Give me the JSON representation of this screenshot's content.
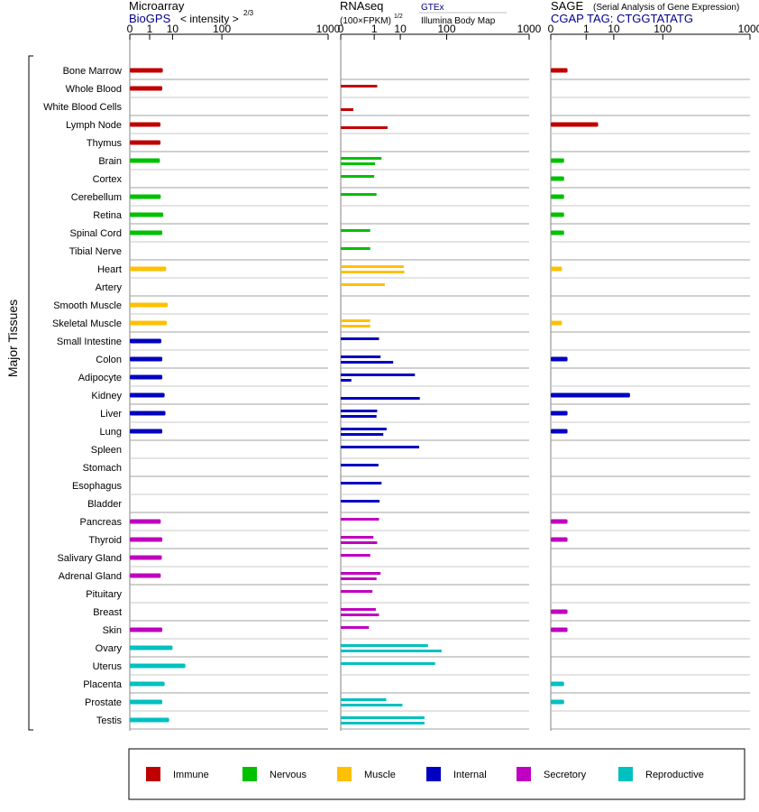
{
  "chart_data": {
    "type": "bar",
    "ylabel": "Major Tissues",
    "categories": [
      "Bone Marrow",
      "Whole Blood",
      "White Blood Cells",
      "Lymph Node",
      "Thymus",
      "Brain",
      "Cortex",
      "Cerebellum",
      "Retina",
      "Spinal Cord",
      "Tibial Nerve",
      "Heart",
      "Artery",
      "Smooth Muscle",
      "Skeletal Muscle",
      "Small Intestine",
      "Colon",
      "Adipocyte",
      "Kidney",
      "Liver",
      "Lung",
      "Spleen",
      "Stomach",
      "Esophagus",
      "Bladder",
      "Pancreas",
      "Thyroid",
      "Salivary Gland",
      "Adrenal Gland",
      "Pituitary",
      "Breast",
      "Skin",
      "Ovary",
      "Uterus",
      "Placenta",
      "Prostate",
      "Testis"
    ],
    "groups": [
      "immune",
      "immune",
      "immune",
      "immune",
      "immune",
      "nervous",
      "nervous",
      "nervous",
      "nervous",
      "nervous",
      "nervous",
      "muscle",
      "muscle",
      "muscle",
      "muscle",
      "internal",
      "internal",
      "internal",
      "internal",
      "internal",
      "internal",
      "internal",
      "internal",
      "internal",
      "internal",
      "secretory",
      "secretory",
      "secretory",
      "secretory",
      "secretory",
      "secretory",
      "secretory",
      "reproductive",
      "reproductive",
      "reproductive",
      "reproductive",
      "reproductive"
    ],
    "group_colors": {
      "immune": "#c00000",
      "nervous": "#00c000",
      "muscle": "#ffc000",
      "internal": "#0000c0",
      "secretory": "#c000c0",
      "reproductive": "#00c0c0"
    },
    "panels": [
      {
        "key": "microarray",
        "title": "Microarray",
        "subtitle_link": "BioGPS",
        "scale_label": "< intensity >",
        "scale_exponent": "2/3",
        "ticks": [
          "0",
          "1",
          "10",
          "100",
          "1000"
        ],
        "tick_values": [
          0,
          1,
          10,
          100,
          1000
        ],
        "xlim": [
          0,
          1000
        ],
        "values": [
          4.6,
          4.4,
          null,
          3.7,
          3.7,
          3.5,
          null,
          3.8,
          4.8,
          4.4,
          null,
          6.2,
          null,
          7.0,
          6.5,
          4.0,
          4.4,
          4.4,
          5.4,
          5.8,
          4.4,
          null,
          null,
          null,
          null,
          3.8,
          4.4,
          4.2,
          3.8,
          null,
          null,
          4.4,
          10.0,
          22.0,
          5.4,
          4.4,
          7.8
        ]
      },
      {
        "key": "rnaseq",
        "title": "RNAseq",
        "scale_label": "(100×FPKM)",
        "scale_exponent": "1/2",
        "source_top": "GTEx",
        "source_bottom": "Illumina Body Map",
        "ticks": [
          "0",
          "1",
          "10",
          "100",
          "1000"
        ],
        "tick_values": [
          0,
          1,
          10,
          100,
          1000
        ],
        "xlim": [
          0,
          1000
        ],
        "values_gtex": [
          null,
          1.4,
          null,
          null,
          null,
          2.2,
          1.0,
          1.3,
          null,
          0.6,
          0.6,
          12.5,
          3.0,
          null,
          0.6,
          1.7,
          2.0,
          24.0,
          null,
          1.4,
          3.5,
          30.0,
          1.6,
          2.2,
          1.8,
          1.7,
          0.9,
          0.6,
          2.0,
          0.8,
          1.2,
          0.5,
          46.0,
          63.0,
          null,
          3.4,
          39.0
        ],
        "values_bodymap": [
          null,
          null,
          0.02,
          3.8,
          null,
          1.1,
          null,
          null,
          null,
          null,
          null,
          13.0,
          null,
          null,
          0.6,
          null,
          6.0,
          0.01,
          31.0,
          1.3,
          2.6,
          null,
          null,
          null,
          null,
          null,
          1.4,
          null,
          1.3,
          null,
          1.7,
          null,
          82.0,
          null,
          null,
          11.5,
          39.0
        ]
      },
      {
        "key": "sage",
        "title": "SAGE",
        "subtitle_note": "(Serial Analysis of Gene Expression)",
        "subtitle_link": "CGAP TAG: CTGGTATATG",
        "ticks": [
          "0",
          "1",
          "10",
          "100",
          "1000"
        ],
        "tick_values": [
          0,
          1,
          10,
          100,
          1000
        ],
        "xlim": [
          0,
          1000
        ],
        "values": [
          0.05,
          null,
          null,
          3.2,
          null,
          0.02,
          0.02,
          0.02,
          0.02,
          0.02,
          null,
          0.01,
          null,
          null,
          0.01,
          null,
          0.05,
          null,
          25.0,
          0.05,
          0.05,
          null,
          null,
          null,
          null,
          0.05,
          0.05,
          null,
          null,
          null,
          0.05,
          0.05,
          null,
          null,
          0.02,
          0.02,
          null
        ]
      }
    ],
    "legend": {
      "placement": "bottom",
      "entries": [
        {
          "key": "immune",
          "label": "Immune"
        },
        {
          "key": "nervous",
          "label": "Nervous"
        },
        {
          "key": "muscle",
          "label": "Muscle"
        },
        {
          "key": "internal",
          "label": "Internal"
        },
        {
          "key": "secretory",
          "label": "Secretory"
        },
        {
          "key": "reproductive",
          "label": "Reproductive"
        }
      ]
    },
    "grid": true
  }
}
